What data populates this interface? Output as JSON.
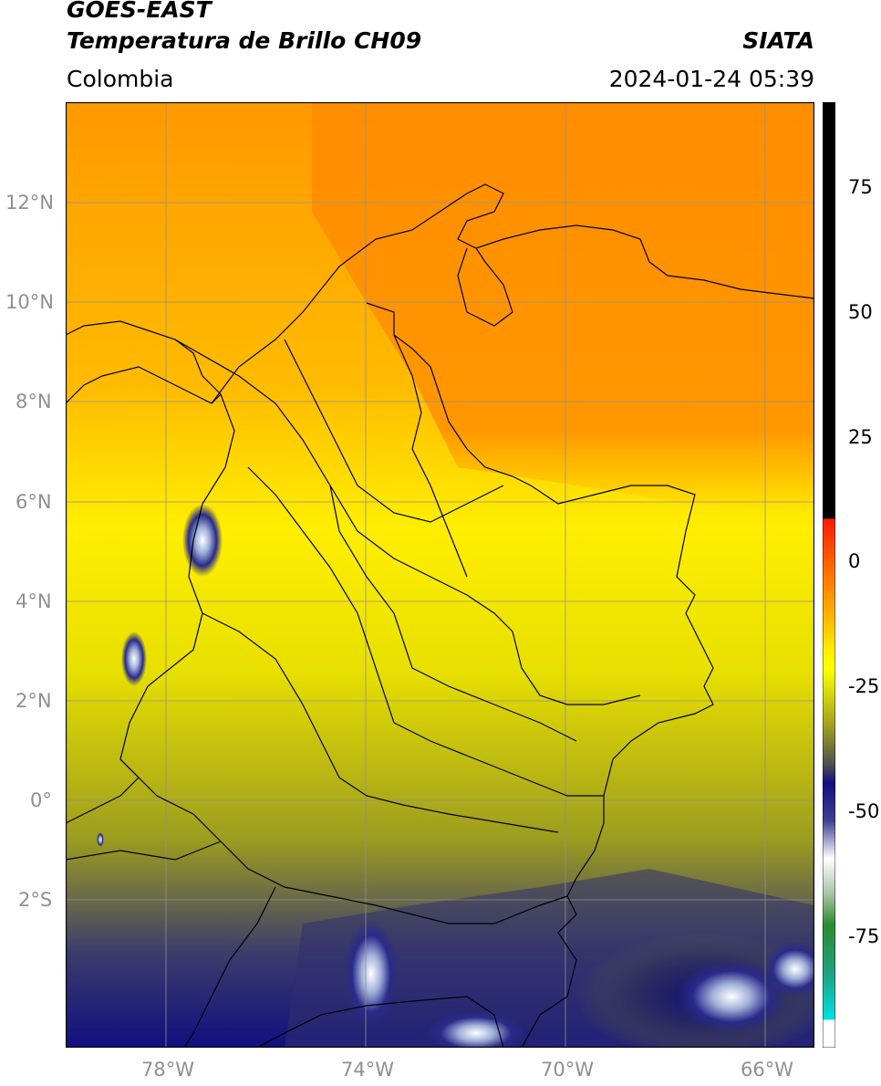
{
  "header": {
    "line1": "GOES-EAST",
    "line2": "Temperatura de Brillo CH09",
    "region": "Colombia",
    "brand": "SIATA",
    "timestamp": "2024-01-24 05:39"
  },
  "map": {
    "lat_labels": [
      "12°N",
      "10°N",
      "8°N",
      "6°N",
      "4°N",
      "2°N",
      "0°",
      "2°S"
    ],
    "lon_labels": [
      "78°W",
      "74°W",
      "70°W",
      "66°W"
    ],
    "extent": {
      "lon": [
        -80,
        -65
      ],
      "lat": [
        -5,
        14
      ]
    }
  },
  "colorbar": {
    "ticks": [
      "75",
      "50",
      "25",
      "0",
      "-25",
      "-50",
      "-75"
    ],
    "colors": {
      "hot": "#000000",
      "warm": "#ff3300",
      "orange": "#ff8c00",
      "yellow": "#ffff00",
      "olive": "#a0a020",
      "gray": "#505050",
      "navy": "#101080",
      "white": "#ffffff",
      "green": "#2e8b2e",
      "cyan": "#00e0e0"
    }
  }
}
